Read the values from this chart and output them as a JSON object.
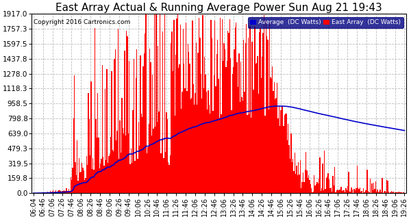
{
  "title": "East Array Actual & Running Average Power Sun Aug 21 19:43",
  "copyright": "Copyright 2016 Cartronics.com",
  "legend_avg": "Average  (DC Watts)",
  "legend_east": "East Array  (DC Watts)",
  "yticks": [
    0.0,
    159.8,
    319.5,
    479.3,
    639.0,
    798.8,
    958.5,
    1118.3,
    1278.0,
    1437.8,
    1597.5,
    1757.3,
    1917.0
  ],
  "ymax": 1917.0,
  "ymin": 0.0,
  "bg_color": "#ffffff",
  "grid_color": "#bbbbbb",
  "bar_color": "#ff0000",
  "avg_line_color": "#0000cc",
  "title_fontsize": 11,
  "tick_fontsize": 7.5,
  "xtick_labels": [
    "06:04",
    "06:46",
    "07:06",
    "07:26",
    "07:46",
    "08:06",
    "08:26",
    "08:46",
    "09:06",
    "09:26",
    "09:46",
    "10:06",
    "10:26",
    "10:46",
    "11:06",
    "11:26",
    "11:46",
    "12:06",
    "12:26",
    "12:46",
    "13:06",
    "13:26",
    "13:46",
    "14:06",
    "14:26",
    "14:46",
    "15:06",
    "15:26",
    "15:46",
    "16:06",
    "16:26",
    "16:46",
    "17:06",
    "17:26",
    "17:46",
    "18:06",
    "18:26",
    "18:46",
    "19:06",
    "19:26"
  ]
}
